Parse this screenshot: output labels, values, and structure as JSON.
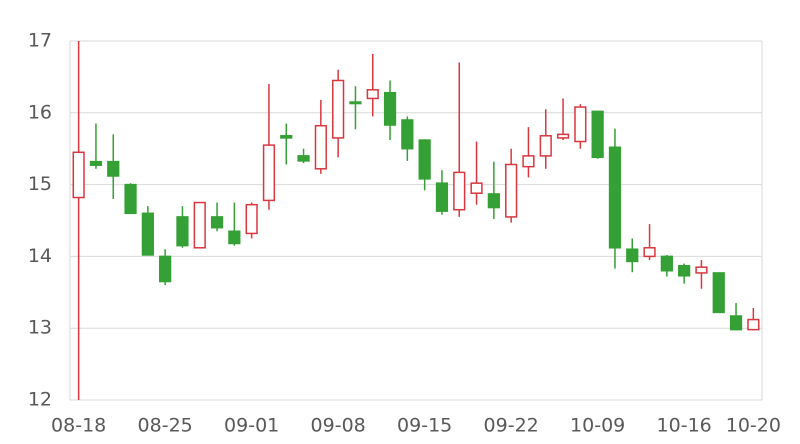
{
  "chart_data": {
    "type": "candlestick",
    "categories": [
      "08-18",
      null,
      null,
      null,
      null,
      "08-25",
      null,
      null,
      null,
      null,
      "09-01",
      null,
      null,
      null,
      null,
      "09-08",
      null,
      null,
      null,
      null,
      "09-15",
      null,
      null,
      null,
      null,
      "09-22",
      null,
      null,
      null,
      null,
      "10-09",
      null,
      null,
      null,
      null,
      "10-16",
      null,
      null,
      null,
      "10-20"
    ],
    "open": [
      14.82,
      15.32,
      15.32,
      15.0,
      14.6,
      14.0,
      14.55,
      14.12,
      14.55,
      14.35,
      14.32,
      14.78,
      15.68,
      15.4,
      15.22,
      15.65,
      16.15,
      16.2,
      16.28,
      15.9,
      15.62,
      15.02,
      14.65,
      14.88,
      14.87,
      14.55,
      15.25,
      15.4,
      15.65,
      15.6,
      16.02,
      15.52,
      14.1,
      14.0,
      14.0,
      13.87,
      13.77,
      13.77,
      13.17,
      12.98
    ],
    "high": [
      17.0,
      15.85,
      15.7,
      15.02,
      14.7,
      14.1,
      14.7,
      14.75,
      14.75,
      14.75,
      14.75,
      16.4,
      15.85,
      15.5,
      16.18,
      16.6,
      16.37,
      16.82,
      16.45,
      15.95,
      15.63,
      15.2,
      16.7,
      15.6,
      15.32,
      15.5,
      15.8,
      16.05,
      16.2,
      16.12,
      16.02,
      15.78,
      14.25,
      14.45,
      14.02,
      13.9,
      13.95,
      13.77,
      13.35,
      13.28
    ],
    "low": [
      12.0,
      15.22,
      14.8,
      14.6,
      14.02,
      13.6,
      14.12,
      14.12,
      14.35,
      14.15,
      14.25,
      14.65,
      15.28,
      15.3,
      15.15,
      15.38,
      15.77,
      15.95,
      15.62,
      15.33,
      14.92,
      14.58,
      14.55,
      14.72,
      14.52,
      14.47,
      15.1,
      15.22,
      15.62,
      15.5,
      15.36,
      13.83,
      13.78,
      13.95,
      13.72,
      13.62,
      13.55,
      13.22,
      12.97,
      12.97
    ],
    "close": [
      15.45,
      15.27,
      15.12,
      14.6,
      14.02,
      13.65,
      14.15,
      14.75,
      14.4,
      14.18,
      14.72,
      15.55,
      15.65,
      15.33,
      15.82,
      16.45,
      16.13,
      16.32,
      15.83,
      15.5,
      15.08,
      14.63,
      15.17,
      15.02,
      14.68,
      15.28,
      15.4,
      15.68,
      15.7,
      16.08,
      15.38,
      14.12,
      13.93,
      14.12,
      13.8,
      13.73,
      13.85,
      13.22,
      12.98,
      13.12
    ],
    "up_color": "#d9363e",
    "down_color": "#35a035",
    "ylim": [
      12,
      17
    ],
    "yticks": [
      12,
      13,
      14,
      15,
      16,
      17
    ],
    "grid": true
  }
}
